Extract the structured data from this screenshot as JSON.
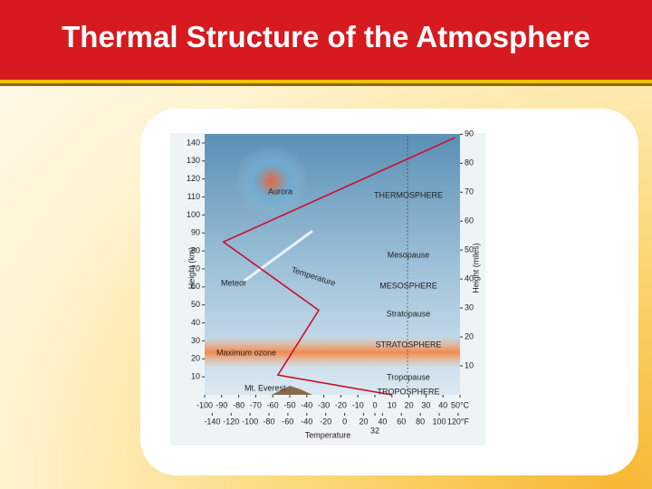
{
  "title": "Thermal Structure of the Atmosphere",
  "chart_data": {
    "type": "line",
    "x_label": "Temperature",
    "y_label": "Height (km)",
    "y2_label": "Height (miles)",
    "series": [
      {
        "name": "Temperature",
        "color": "#c8102e",
        "x": [
          10,
          -57,
          -33,
          -89,
          47
        ],
        "values": [
          0,
          11,
          47,
          85,
          143
        ]
      }
    ],
    "xlim": [
      -100,
      50
    ],
    "xticks": [
      -100,
      -90,
      -80,
      -70,
      -60,
      -50,
      -40,
      -30,
      -20,
      -10,
      0,
      10,
      20,
      30,
      40,
      {
        "value": 50,
        "label": "50°C"
      }
    ],
    "x2lim": [
      -148,
      122
    ],
    "x2ticks": [
      -140,
      -120,
      -100,
      -80,
      -60,
      -40,
      -20,
      0,
      20,
      32,
      40,
      60,
      80,
      100,
      {
        "value": 120,
        "label": "120°F"
      }
    ],
    "ylim": [
      0,
      145
    ],
    "yticks": [
      10,
      20,
      30,
      40,
      50,
      60,
      70,
      80,
      90,
      100,
      110,
      120,
      130,
      140
    ],
    "y2lim": [
      0,
      90.1
    ],
    "y2ticks": [
      10,
      20,
      30,
      40,
      50,
      60,
      70,
      80,
      90
    ],
    "annotations": [
      "Aurora",
      "THERMOSPHERE",
      "Mesopause",
      "MESOSPHERE",
      "Stratopause",
      "STRATOSPHERE",
      "Tropopause",
      "TROPOSPHERE",
      "Maximum ozone",
      "Meteor",
      "Mt. Everest"
    ]
  }
}
